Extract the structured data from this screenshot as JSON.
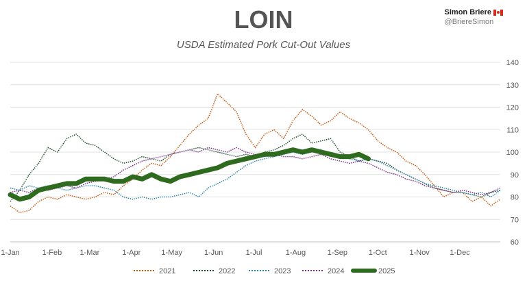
{
  "header": {
    "title": "LOIN",
    "subtitle": "USDA Estimated Pork Cut-Out Values",
    "author": "Simon Briere",
    "handle": "@BriereSimon",
    "flag_icon": "canada-flag-icon"
  },
  "chart_data": {
    "type": "line",
    "title": "LOIN",
    "subtitle": "USDA Estimated Pork Cut-Out Values",
    "xlabel": "",
    "ylabel": "",
    "ylim": [
      60,
      140
    ],
    "yticks": [
      60,
      70,
      80,
      90,
      100,
      110,
      120,
      130,
      140
    ],
    "xticks": [
      {
        "label": "1-Jan",
        "day": 0
      },
      {
        "label": "1-Feb",
        "day": 31
      },
      {
        "label": "1-Mar",
        "day": 59
      },
      {
        "label": "1-Apr",
        "day": 90
      },
      {
        "label": "1-May",
        "day": 120
      },
      {
        "label": "1-Jun",
        "day": 151
      },
      {
        "label": "1-Jul",
        "day": 181
      },
      {
        "label": "1-Aug",
        "day": 212
      },
      {
        "label": "1-Sep",
        "day": 243
      },
      {
        "label": "1-Oct",
        "day": 273
      },
      {
        "label": "1-Nov",
        "day": 304
      },
      {
        "label": "1-Dec",
        "day": 334
      }
    ],
    "x_step_days": 7,
    "legend": "bottom",
    "grid": true,
    "series": [
      {
        "name": "2021",
        "color": "#c55a11",
        "style": "dotted",
        "values": [
          76,
          73,
          74,
          78,
          80,
          79,
          81,
          80,
          79,
          80,
          82,
          81,
          85,
          88,
          92,
          95,
          94,
          98,
          103,
          108,
          112,
          115,
          126,
          122,
          118,
          108,
          102,
          108,
          110,
          106,
          114,
          119,
          116,
          112,
          114,
          118,
          115,
          113,
          110,
          105,
          102,
          100,
          96,
          94,
          90,
          85,
          80,
          82,
          82,
          78,
          80,
          76,
          79
        ]
      },
      {
        "name": "2022",
        "color": "#1e4d2b",
        "style": "dotted",
        "values": [
          78,
          83,
          90,
          95,
          102,
          100,
          106,
          108,
          104,
          103,
          100,
          97,
          95,
          96,
          98,
          97,
          96,
          99,
          100,
          101,
          102,
          101,
          100,
          99,
          98,
          99,
          98,
          100,
          101,
          103,
          106,
          108,
          104,
          105,
          106,
          100,
          98,
          96,
          97,
          96,
          95,
          92,
          90,
          88,
          86,
          84,
          83,
          82,
          82,
          81,
          80,
          82,
          83
        ]
      },
      {
        "name": "2023",
        "color": "#2e86ab",
        "style": "dotted",
        "values": [
          84,
          83,
          85,
          84,
          85,
          84,
          83,
          84,
          85,
          85,
          84,
          83,
          80,
          79,
          80,
          79,
          80,
          80,
          81,
          82,
          80,
          84,
          86,
          88,
          91,
          94,
          96,
          97,
          98,
          99,
          100,
          99,
          100,
          101,
          99,
          98,
          97,
          96,
          97,
          96,
          94,
          92,
          90,
          88,
          86,
          85,
          84,
          83,
          82,
          81,
          82,
          80,
          83
        ]
      },
      {
        "name": "2024",
        "color": "#7b2d8e",
        "style": "dotted",
        "values": [
          82,
          83,
          82,
          84,
          83,
          84,
          85,
          84,
          86,
          87,
          88,
          89,
          92,
          94,
          96,
          97,
          98,
          99,
          100,
          101,
          100,
          102,
          101,
          100,
          102,
          100,
          99,
          98,
          99,
          98,
          98,
          97,
          98,
          99,
          97,
          96,
          95,
          96,
          95,
          93,
          91,
          90,
          88,
          87,
          85,
          84,
          83,
          82,
          83,
          82,
          81,
          82,
          84
        ]
      },
      {
        "name": "2025",
        "color": "#2f6b1e",
        "style": "thick",
        "values": [
          81,
          79,
          80,
          83,
          84,
          85,
          86,
          86,
          88,
          88,
          88,
          87,
          87,
          89,
          88,
          90,
          88,
          87,
          89,
          90,
          91,
          92,
          93,
          95,
          96,
          97,
          98,
          99,
          99,
          100,
          101,
          100,
          101,
          100,
          99,
          98,
          98,
          99,
          97
        ]
      }
    ]
  }
}
